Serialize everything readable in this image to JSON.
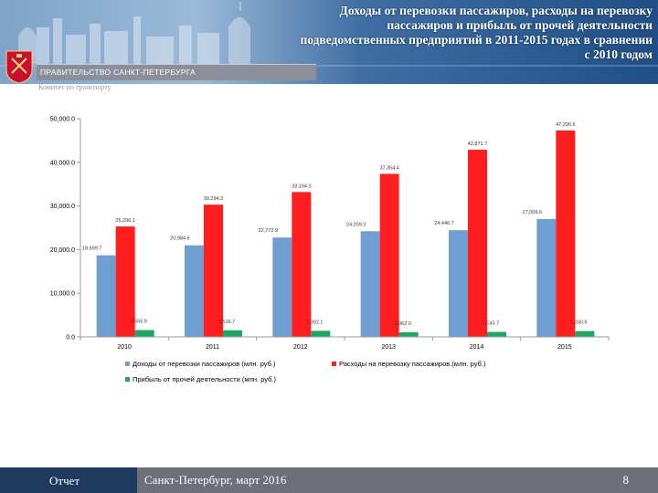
{
  "header": {
    "title_lines": [
      "Доходы от перевозки пассажиров, расходы на перевозку",
      "пассажиров и прибыль от прочей деятельности",
      "подведомственных предприятий  в 2011-2015 годах в сравнении",
      "с 2010 годом"
    ],
    "government": "ПРАВИТЕЛЬСТВО САНКТ-ПЕТЕРБУРГА",
    "committee": "Комитет по транспорту"
  },
  "chart_data": {
    "type": "bar",
    "categories": [
      "2010",
      "2011",
      "2012",
      "2013",
      "2014",
      "2015"
    ],
    "series": [
      {
        "name": "Доходы от перевозки пассажиров (млн. руб.)",
        "color": "#6f9fd0",
        "values": [
          18699.7,
          20984.6,
          22772.9,
          24209.3,
          24446.7,
          27009.6
        ],
        "labels": [
          "18,699.7",
          "20,984.6",
          "22,772.9",
          "24,209.3",
          "24,446.7",
          "27,009.6"
        ]
      },
      {
        "name": "Расходы на перевозку пассажиров.(млн. руб.)",
        "color": "#ff1e1e",
        "values": [
          25296.1,
          30294.3,
          33194.3,
          37354.4,
          42871.7,
          47290.6
        ],
        "labels": [
          "25,296.1",
          "30,294.3",
          "33,194.3",
          "37,354.4",
          "42,871.7",
          "47,290.6"
        ]
      },
      {
        "name": "Прибыль от прочей деятельности (млн. руб.)",
        "color": "#1aa860",
        "values": [
          1555.9,
          1516.7,
          1392.1,
          1062.0,
          1143.7,
          1330.9
        ],
        "labels": [
          "1,555.9",
          "1,516.7",
          "1,392.1",
          "1,062.0",
          "1,143.7",
          "1,330.9"
        ]
      }
    ],
    "ylim": [
      0,
      50000
    ],
    "yticks": [
      0,
      10000,
      20000,
      30000,
      40000,
      50000
    ],
    "ytick_labels": [
      "0.0",
      "10,000.0",
      "20,000.0",
      "30,000.0",
      "40,000.0",
      "50,000.0"
    ],
    "legend_position": "bottom"
  },
  "footer": {
    "report": "Отчет",
    "city_date": "Санкт-Петербург, март 2016",
    "page": "8"
  }
}
